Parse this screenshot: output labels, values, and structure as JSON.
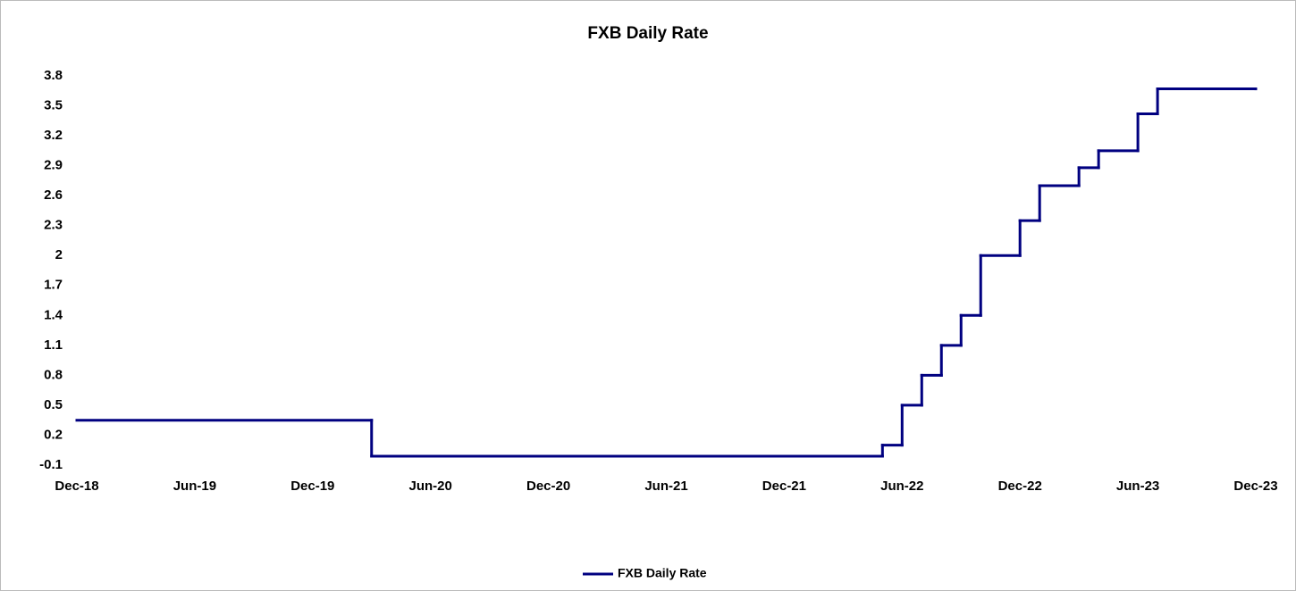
{
  "chart_data": {
    "type": "line",
    "step": "post",
    "title": "FXB Daily Rate",
    "x": [
      "2018-12",
      "2020-03",
      "2022-05",
      "2022-06",
      "2022-07",
      "2022-08",
      "2022-09",
      "2022-10",
      "2022-12",
      "2023-01",
      "2023-03",
      "2023-04",
      "2023-06",
      "2023-07",
      "2023-12"
    ],
    "series": [
      {
        "name": "FXB Daily Rate",
        "color": "#000080",
        "values": [
          0.35,
          -0.01,
          0.1,
          0.5,
          0.8,
          1.1,
          1.4,
          2.0,
          2.35,
          2.7,
          2.88,
          3.05,
          3.42,
          3.67,
          3.67
        ]
      }
    ],
    "xlim": [
      "2018-12",
      "2023-12"
    ],
    "xticks": [
      {
        "value": "2018-12",
        "label": "Dec-18"
      },
      {
        "value": "2019-06",
        "label": "Jun-19"
      },
      {
        "value": "2019-12",
        "label": "Dec-19"
      },
      {
        "value": "2020-06",
        "label": "Jun-20"
      },
      {
        "value": "2020-12",
        "label": "Dec-20"
      },
      {
        "value": "2021-06",
        "label": "Jun-21"
      },
      {
        "value": "2021-12",
        "label": "Dec-21"
      },
      {
        "value": "2022-06",
        "label": "Jun-22"
      },
      {
        "value": "2022-12",
        "label": "Dec-22"
      },
      {
        "value": "2023-06",
        "label": "Jun-23"
      },
      {
        "value": "2023-12",
        "label": "Dec-23"
      }
    ],
    "ylim": [
      -0.1,
      3.8
    ],
    "yticks": [
      -0.1,
      0.2,
      0.5,
      0.8,
      1.1,
      1.4,
      1.7,
      2,
      2.3,
      2.6,
      2.9,
      3.2,
      3.5,
      3.8
    ],
    "grid": false,
    "legend": "bottom"
  }
}
